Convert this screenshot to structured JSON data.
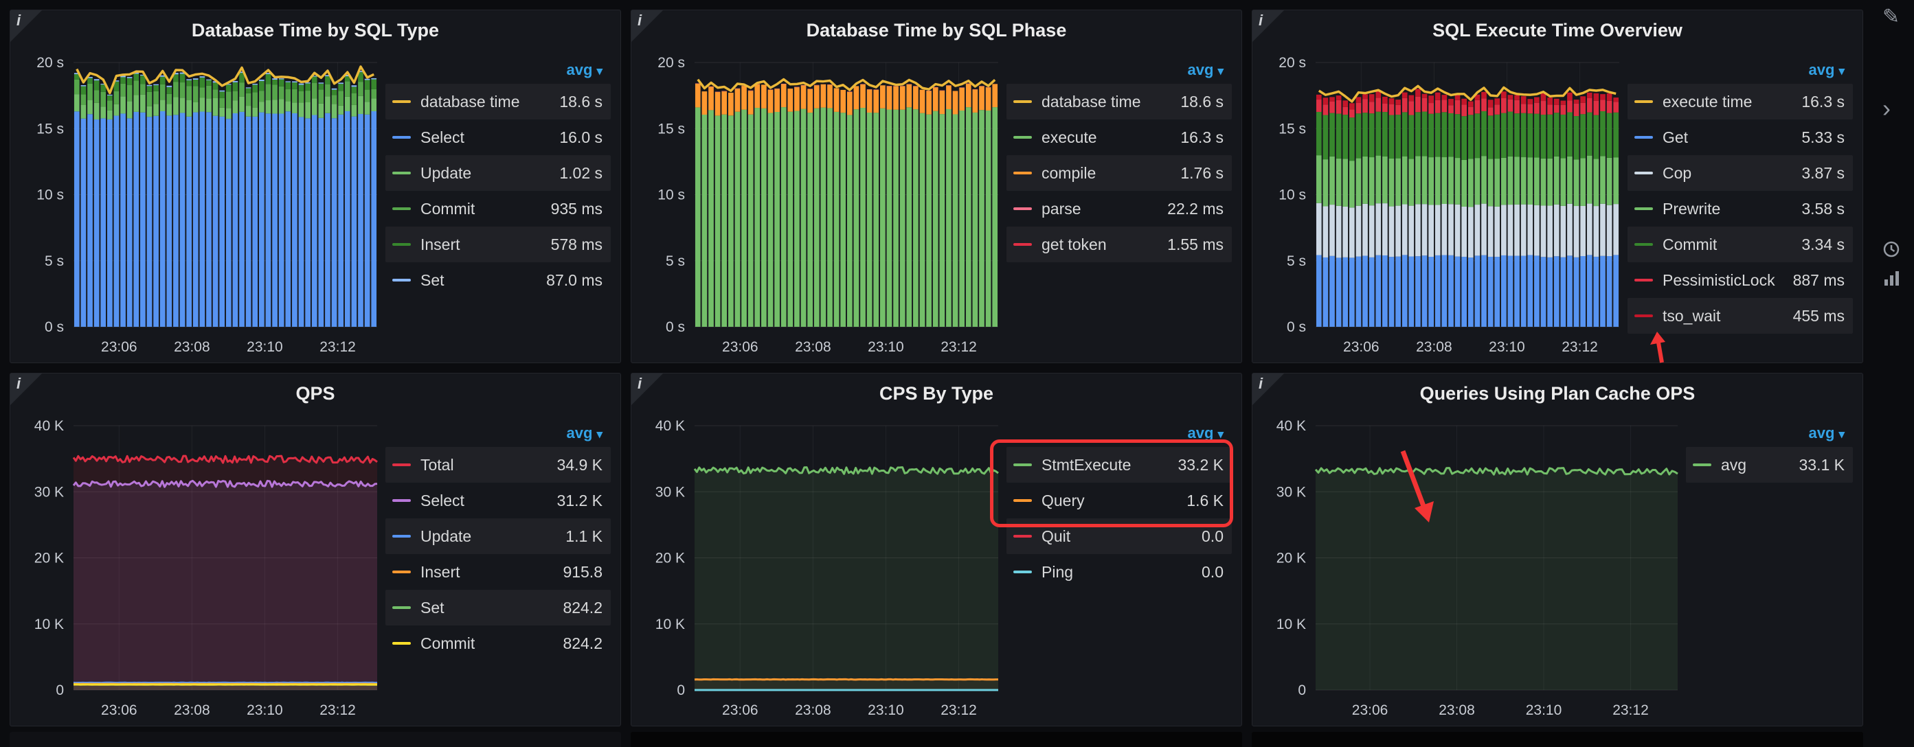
{
  "theme": {
    "page_bg": "#0b0c0f",
    "panel_bg": "#15171c",
    "legend_avg_color": "#33a2e5",
    "annotation_color": "#f23434"
  },
  "panels": [
    {
      "title": "Database Time by SQL Type",
      "legend_mode": "avg",
      "legend": [
        {
          "name": "database time",
          "value": "18.6 s",
          "color": "#EAB839"
        },
        {
          "name": "Select",
          "value": "16.0 s",
          "color": "#5794F2"
        },
        {
          "name": "Update",
          "value": "1.02 s",
          "color": "#73BF69"
        },
        {
          "name": "Commit",
          "value": "935 ms",
          "color": "#56A64B"
        },
        {
          "name": "Insert",
          "value": "578 ms",
          "color": "#37872D"
        },
        {
          "name": "Set",
          "value": "87.0 ms",
          "color": "#8AB8FF"
        }
      ]
    },
    {
      "title": "Database Time by SQL Phase",
      "legend_mode": "avg",
      "legend": [
        {
          "name": "database time",
          "value": "18.6 s",
          "color": "#EAB839"
        },
        {
          "name": "execute",
          "value": "16.3 s",
          "color": "#73BF69"
        },
        {
          "name": "compile",
          "value": "1.76 s",
          "color": "#FF9830"
        },
        {
          "name": "parse",
          "value": "22.2 ms",
          "color": "#F2708A"
        },
        {
          "name": "get token",
          "value": "1.55 ms",
          "color": "#E02F44"
        }
      ]
    },
    {
      "title": "SQL Execute Time Overview",
      "legend_mode": "avg",
      "legend": [
        {
          "name": "execute time",
          "value": "16.3 s",
          "color": "#EAB839"
        },
        {
          "name": "Get",
          "value": "5.33 s",
          "color": "#5794F2"
        },
        {
          "name": "Cop",
          "value": "3.87 s",
          "color": "#CDD9E5"
        },
        {
          "name": "Prewrite",
          "value": "3.58 s",
          "color": "#73BF69"
        },
        {
          "name": "Commit",
          "value": "3.34 s",
          "color": "#37872D"
        },
        {
          "name": "PessimisticLock",
          "value": "887 ms",
          "color": "#E02F44"
        },
        {
          "name": "tso_wait",
          "value": "455 ms",
          "color": "#C4162A"
        }
      ]
    },
    {
      "title": "QPS",
      "legend_mode": "avg",
      "legend": [
        {
          "name": "Total",
          "value": "34.9 K",
          "color": "#E02F44"
        },
        {
          "name": "Select",
          "value": "31.2 K",
          "color": "#B877D9"
        },
        {
          "name": "Update",
          "value": "1.1 K",
          "color": "#5794F2"
        },
        {
          "name": "Insert",
          "value": "915.8",
          "color": "#FF9830"
        },
        {
          "name": "Set",
          "value": "824.2",
          "color": "#73BF69"
        },
        {
          "name": "Commit",
          "value": "824.2",
          "color": "#FADE2A"
        }
      ]
    },
    {
      "title": "CPS By Type",
      "legend_mode": "avg",
      "legend": [
        {
          "name": "StmtExecute",
          "value": "33.2 K",
          "color": "#73BF69"
        },
        {
          "name": "Query",
          "value": "1.6 K",
          "color": "#FF9830"
        },
        {
          "name": "Quit",
          "value": "0.0",
          "color": "#E02F44"
        },
        {
          "name": "Ping",
          "value": "0.0",
          "color": "#6ED0E0"
        }
      ]
    },
    {
      "title": "Queries Using Plan Cache OPS",
      "legend_mode": "avg",
      "legend": [
        {
          "name": "avg",
          "value": "33.1 K",
          "color": "#73BF69"
        }
      ]
    }
  ],
  "chart_data": [
    {
      "type": "stacked_bar",
      "title": "Database Time by SQL Type",
      "x_ticks": [
        "23:06",
        "23:08",
        "23:10",
        "23:12"
      ],
      "y_ticks": [
        "0 s",
        "5 s",
        "10 s",
        "15 s",
        "20 s"
      ],
      "ylim": [
        0,
        20
      ],
      "unit": "seconds",
      "grid": true,
      "legend_position": "right",
      "series": [
        {
          "name": "Select",
          "color": "#5794F2",
          "value": 16.0
        },
        {
          "name": "Update",
          "color": "#73BF69",
          "value": 1.02
        },
        {
          "name": "Commit",
          "color": "#56A64B",
          "value": 0.935
        },
        {
          "name": "Insert",
          "color": "#37872D",
          "value": 0.578
        },
        {
          "name": "Set",
          "color": "#8AB8FF",
          "value": 0.087
        }
      ],
      "line": {
        "name": "database time",
        "color": "#EAB839",
        "value": 18.6
      }
    },
    {
      "type": "stacked_bar",
      "title": "Database Time by SQL Phase",
      "x_ticks": [
        "23:06",
        "23:08",
        "23:10",
        "23:12"
      ],
      "y_ticks": [
        "0 s",
        "5 s",
        "10 s",
        "15 s",
        "20 s"
      ],
      "ylim": [
        0,
        20
      ],
      "unit": "seconds",
      "grid": true,
      "legend_position": "right",
      "series": [
        {
          "name": "execute",
          "color": "#73BF69",
          "value": 16.3
        },
        {
          "name": "compile",
          "color": "#FF9830",
          "value": 1.76
        },
        {
          "name": "parse",
          "color": "#F2708A",
          "value": 0.0222
        },
        {
          "name": "get token",
          "color": "#E02F44",
          "value": 0.00155
        }
      ],
      "line": {
        "name": "database time",
        "color": "#EAB839",
        "value": 18.6
      }
    },
    {
      "type": "stacked_bar",
      "title": "SQL Execute Time Overview",
      "x_ticks": [
        "23:06",
        "23:08",
        "23:10",
        "23:12"
      ],
      "y_ticks": [
        "0 s",
        "5 s",
        "10 s",
        "15 s",
        "20 s"
      ],
      "ylim": [
        0,
        20
      ],
      "unit": "seconds",
      "grid": true,
      "legend_position": "right",
      "series": [
        {
          "name": "Get",
          "color": "#5794F2",
          "value": 5.33
        },
        {
          "name": "Cop",
          "color": "#CDD9E5",
          "value": 3.87
        },
        {
          "name": "Prewrite",
          "color": "#73BF69",
          "value": 3.58
        },
        {
          "name": "Commit",
          "color": "#37872D",
          "value": 3.34
        },
        {
          "name": "PessimisticLock",
          "color": "#E02F44",
          "value": 0.887
        },
        {
          "name": "tso_wait",
          "color": "#C4162A",
          "value": 0.455
        }
      ],
      "line": {
        "name": "execute time",
        "color": "#EAB839",
        "value": 16.3
      }
    },
    {
      "type": "line",
      "title": "QPS",
      "x_ticks": [
        "23:06",
        "23:08",
        "23:10",
        "23:12"
      ],
      "y_ticks": [
        "0",
        "10 K",
        "20 K",
        "30 K",
        "40 K"
      ],
      "ylim": [
        0,
        40000
      ],
      "unit": "ops",
      "grid": true,
      "legend_position": "right",
      "series": [
        {
          "name": "Total",
          "color": "#E02F44",
          "value": 34900
        },
        {
          "name": "Select",
          "color": "#B877D9",
          "value": 31200
        },
        {
          "name": "Update",
          "color": "#5794F2",
          "value": 1100
        },
        {
          "name": "Insert",
          "color": "#FF9830",
          "value": 915.8
        },
        {
          "name": "Set",
          "color": "#73BF69",
          "value": 824.2
        },
        {
          "name": "Commit",
          "color": "#FADE2A",
          "value": 824.2
        }
      ]
    },
    {
      "type": "line",
      "title": "CPS By Type",
      "x_ticks": [
        "23:06",
        "23:08",
        "23:10",
        "23:12"
      ],
      "y_ticks": [
        "0",
        "10 K",
        "20 K",
        "30 K",
        "40 K"
      ],
      "ylim": [
        0,
        40000
      ],
      "unit": "ops",
      "grid": true,
      "legend_position": "right",
      "series": [
        {
          "name": "StmtExecute",
          "color": "#73BF69",
          "value": 33200
        },
        {
          "name": "Query",
          "color": "#FF9830",
          "value": 1600
        },
        {
          "name": "Quit",
          "color": "#E02F44",
          "value": 0
        },
        {
          "name": "Ping",
          "color": "#6ED0E0",
          "value": 0
        }
      ]
    },
    {
      "type": "line",
      "title": "Queries Using Plan Cache OPS",
      "x_ticks": [
        "23:06",
        "23:08",
        "23:10",
        "23:12"
      ],
      "y_ticks": [
        "0",
        "10 K",
        "20 K",
        "30 K",
        "40 K"
      ],
      "ylim": [
        0,
        40000
      ],
      "unit": "ops",
      "grid": true,
      "legend_position": "right",
      "series": [
        {
          "name": "avg",
          "color": "#73BF69",
          "value": 33100
        }
      ]
    }
  ],
  "annotations": [
    {
      "panel": "SQL Execute Time Overview",
      "type": "arrow",
      "target": "tso_wait legend item",
      "color": "#f23434"
    },
    {
      "panel": "CPS By Type",
      "type": "box",
      "target": "StmtExecute and Query legend items",
      "color": "#f23434"
    },
    {
      "panel": "Queries Using Plan Cache OPS",
      "type": "arrow",
      "target": "chart area",
      "color": "#f23434"
    }
  ],
  "right_rail": {
    "icons": [
      "pen-icon",
      "chevron-right-icon",
      "clock-icon",
      "bar-chart-icon"
    ]
  }
}
